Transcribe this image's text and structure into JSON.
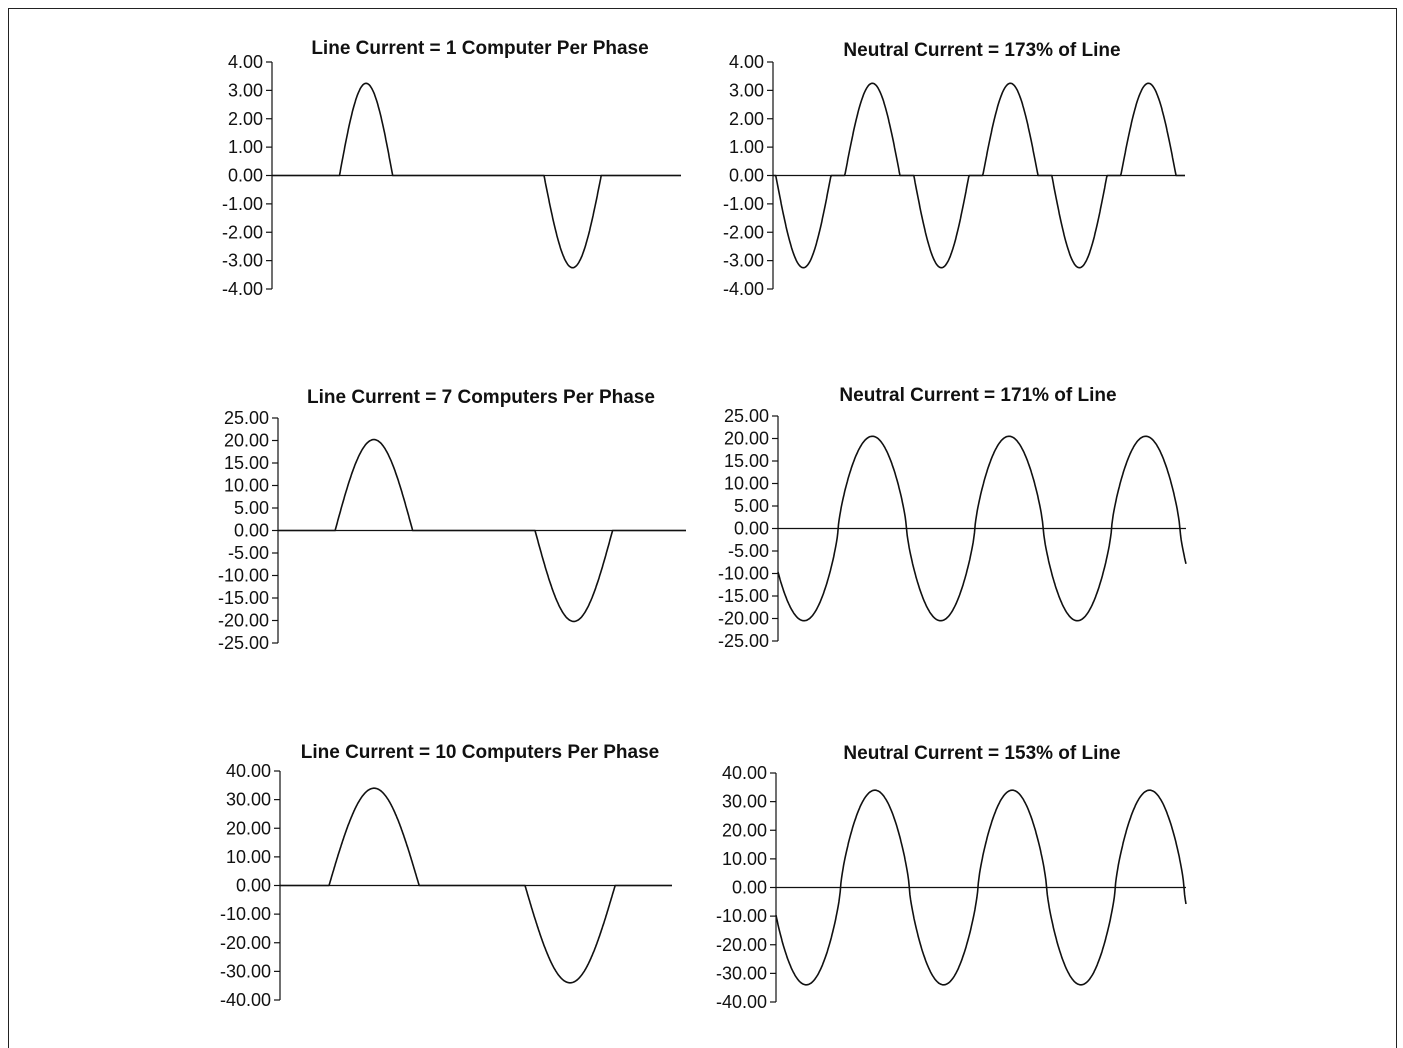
{
  "chart_data": [
    {
      "type": "line",
      "title": "Line Current = 1 Computer Per Phase",
      "xlabel": "",
      "ylabel": "",
      "ylim": [
        -4,
        4
      ],
      "yticks": [
        "4.00",
        "3.00",
        "2.00",
        "1.00",
        "0.00",
        "-1.00",
        "-2.00",
        "-3.00",
        "-4.00"
      ],
      "waveform": "single_phase_pulse",
      "peak": 3.25,
      "series": [
        {
          "x": [
            0,
            0.17,
            0.2,
            0.235,
            0.29,
            0.3,
            0.67,
            0.68,
            0.735,
            0.77,
            0.8,
            1.0
          ],
          "y": [
            0,
            0,
            1.6,
            3.25,
            1.6,
            0,
            0,
            -1.6,
            -3.25,
            -1.6,
            0,
            0
          ]
        }
      ]
    },
    {
      "type": "line",
      "title": "Neutral Current = 173% of Line",
      "xlabel": "",
      "ylabel": "",
      "ylim": [
        -4,
        4
      ],
      "yticks": [
        "4.00",
        "3.00",
        "2.00",
        "1.00",
        "0.00",
        "-1.00",
        "-2.00",
        "-3.00",
        "-4.00"
      ],
      "waveform": "neutral_triplen",
      "peak": 3.25,
      "series": [
        {
          "x": [
            0,
            0.06,
            0.12,
            0.175,
            0.24,
            0.3,
            0.33,
            0.39,
            0.45,
            0.515,
            0.57,
            0.64,
            0.67,
            0.73,
            0.79,
            0.85,
            0.91,
            0.98
          ],
          "y": [
            0,
            -3.25,
            -0.1,
            0,
            3.25,
            0,
            0,
            -3.25,
            0,
            3.25,
            0,
            0,
            -3.25,
            0,
            3.25,
            0,
            0.5,
            0
          ]
        }
      ]
    },
    {
      "type": "line",
      "title": "Line Current = 7 Computers Per Phase",
      "xlabel": "",
      "ylabel": "",
      "ylim": [
        -25,
        25
      ],
      "yticks": [
        "25.00",
        "20.00",
        "15.00",
        "10.00",
        "5.00",
        "0.00",
        "-5.00",
        "-10.00",
        "-15.00",
        "-20.00",
        "-25.00"
      ],
      "waveform": "single_phase_pulse",
      "peak": 20.2,
      "series": [
        {
          "x": [
            0,
            0.14,
            0.22,
            0.33,
            0.63,
            0.71,
            0.82,
            1.0
          ],
          "y": [
            0,
            0,
            20.2,
            0,
            0,
            -20.5,
            0,
            0
          ]
        }
      ]
    },
    {
      "type": "line",
      "title": "Neutral Current = 171% of Line",
      "xlabel": "",
      "ylabel": "",
      "ylim": [
        -25,
        25
      ],
      "yticks": [
        "25.00",
        "20.00",
        "15.00",
        "10.00",
        "5.00",
        "0.00",
        "-5.00",
        "-10.00",
        "-15.00",
        "-20.00",
        "-25.00"
      ],
      "waveform": "neutral_triplen",
      "peak": 20.5,
      "series": [
        {
          "x": [
            0,
            0.06,
            0.12,
            0.19,
            0.26,
            0.33,
            0.4,
            0.47,
            0.53,
            0.6,
            0.67,
            0.74,
            0.81,
            0.88,
            0.94,
            1.0
          ],
          "y": [
            -7,
            -20.5,
            -8,
            20,
            0,
            -20.5,
            -7,
            20,
            0,
            -20.5,
            -8,
            20,
            5,
            0,
            20,
            -7
          ]
        }
      ]
    },
    {
      "type": "line",
      "title": "Line Current = 10 Computers Per Phase",
      "xlabel": "",
      "ylabel": "",
      "ylim": [
        -40,
        40
      ],
      "yticks": [
        "40.00",
        "30.00",
        "20.00",
        "10.00",
        "0.00",
        "-10.00",
        "-20.00",
        "-30.00",
        "-40.00"
      ],
      "waveform": "single_phase_pulse",
      "peak": 34,
      "series": [
        {
          "x": [
            0,
            0.13,
            0.23,
            0.36,
            0.63,
            0.73,
            0.86,
            1.0
          ],
          "y": [
            0,
            0,
            34,
            0,
            0,
            -34,
            0,
            0
          ]
        }
      ]
    },
    {
      "type": "line",
      "title": "Neutral Current = 153% of Line",
      "xlabel": "",
      "ylabel": "",
      "ylim": [
        -40,
        40
      ],
      "yticks": [
        "40.00",
        "30.00",
        "20.00",
        "10.00",
        "0.00",
        "-10.00",
        "-20.00",
        "-30.00",
        "-40.00"
      ],
      "waveform": "neutral_triplen",
      "peak": 34,
      "series": [
        {
          "x": [
            0,
            0.06,
            0.13,
            0.2,
            0.27,
            0.33,
            0.4,
            0.47,
            0.54,
            0.6,
            0.67,
            0.74,
            0.8,
            0.87,
            0.94,
            1.0
          ],
          "y": [
            -13,
            -34,
            0,
            34,
            0,
            -34,
            0,
            34,
            0,
            -32,
            0,
            34,
            0,
            34,
            5,
            -13
          ]
        }
      ]
    }
  ]
}
